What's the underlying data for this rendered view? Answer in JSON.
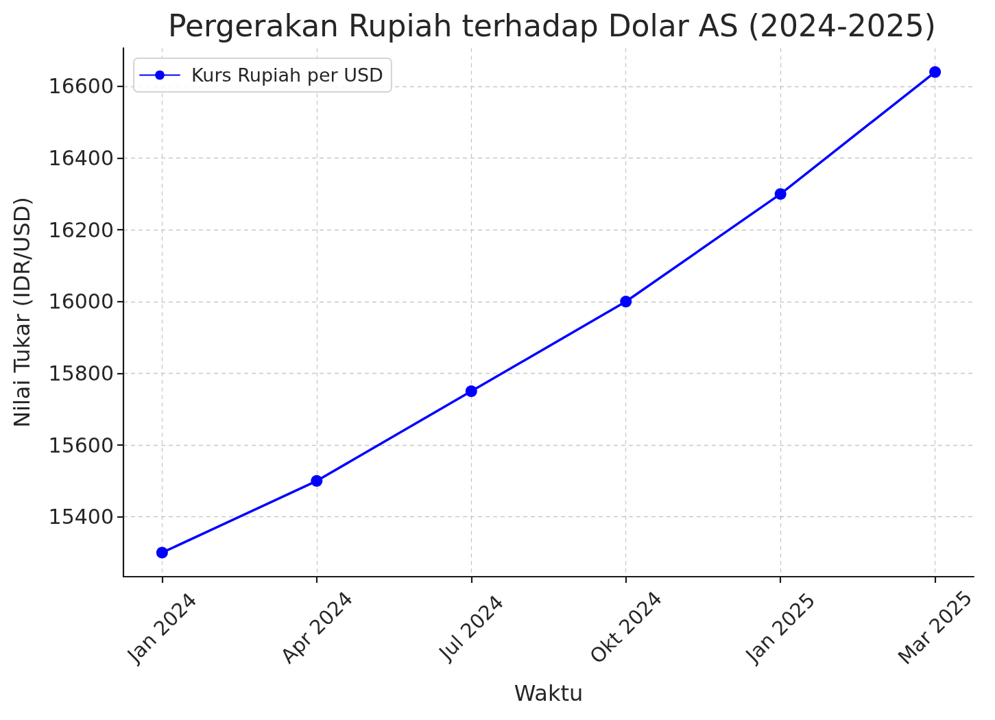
{
  "chart_data": {
    "type": "line",
    "title": "Pergerakan Rupiah terhadap Dolar AS (2024-2025)",
    "xlabel": "Waktu",
    "ylabel": "Nilai Tukar (IDR/USD)",
    "categories": [
      "Jan 2024",
      "Apr 2024",
      "Jul 2024",
      "Okt 2024",
      "Jan 2025",
      "Mar 2025"
    ],
    "series": [
      {
        "name": "Kurs Rupiah per USD",
        "color": "#0000ff",
        "values": [
          15300,
          15500,
          15750,
          16000,
          16300,
          16640
        ]
      }
    ],
    "ylim": [
      15233,
      16707
    ],
    "yticks": [
      15400,
      15600,
      15800,
      16000,
      16200,
      16400,
      16600
    ],
    "grid": true,
    "legend": "top left",
    "marker": "circle",
    "line_style": "solid"
  }
}
